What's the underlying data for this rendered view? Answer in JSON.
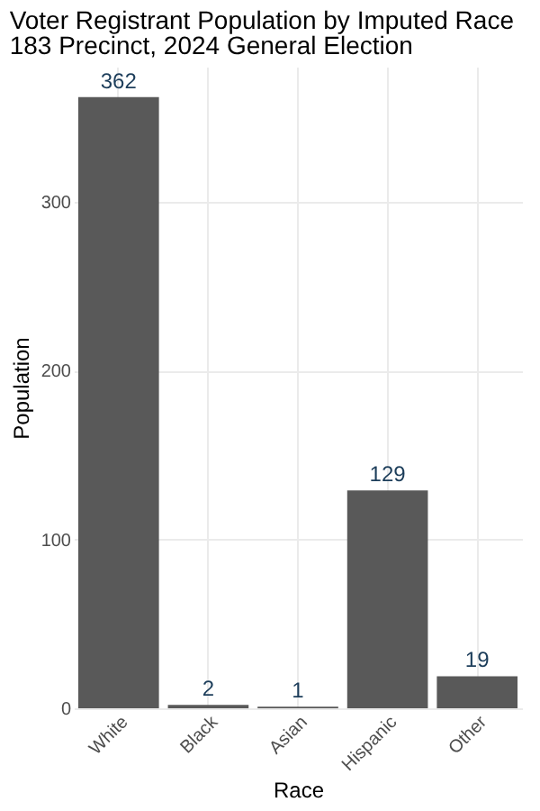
{
  "chart_data": {
    "type": "bar",
    "title": "Voter Registrant Population by Imputed Race",
    "subtitle": "183 Precinct,  2024 General Election",
    "xlabel": "Race",
    "ylabel": "Population",
    "categories": [
      "White",
      "Black",
      "Asian",
      "Hispanic",
      "Other"
    ],
    "values": [
      362,
      2,
      1,
      129,
      19
    ],
    "color": "#595959",
    "ylim": [
      0,
      380
    ],
    "yticks": [
      0,
      100,
      200,
      300
    ],
    "grid": true,
    "data_labels": true
  }
}
